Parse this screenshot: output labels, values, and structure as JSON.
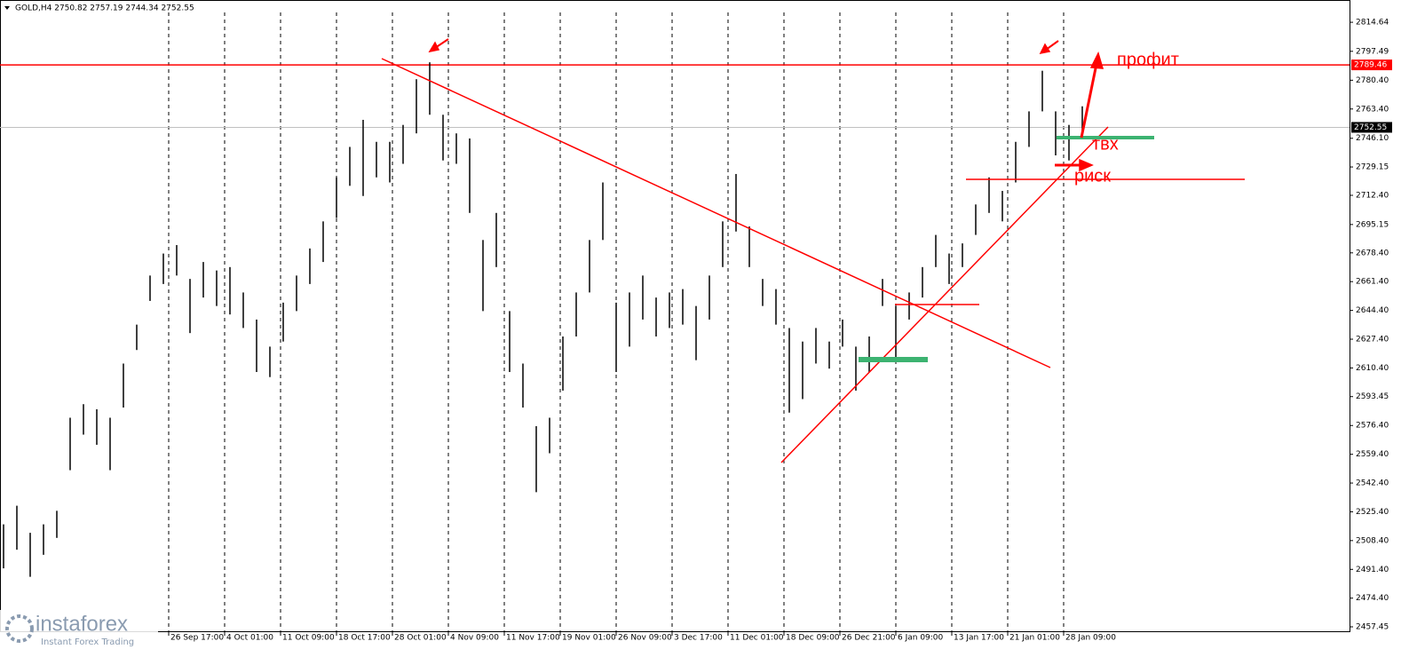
{
  "header": "GOLD,H4 2750.82 2757.19 2744.34 2752.55",
  "logo": {
    "name": "instaforex",
    "tagline": "Instant Forex Trading"
  },
  "chart_data": {
    "type": "ohlc",
    "ylim": [
      2454.3,
      2827.8
    ],
    "yticks": [
      {
        "value": 2814.64,
        "label": "2814.64"
      },
      {
        "value": 2797.49,
        "label": "2797.49"
      },
      {
        "value": 2780.4,
        "label": "2780.40"
      },
      {
        "value": 2763.4,
        "label": "2763.40"
      },
      {
        "value": 2746.1,
        "label": "2746.10"
      },
      {
        "value": 2729.15,
        "label": "2729.15"
      },
      {
        "value": 2712.4,
        "label": "2712.40"
      },
      {
        "value": 2695.15,
        "label": "2695.15"
      },
      {
        "value": 2678.4,
        "label": "2678.40"
      },
      {
        "value": 2661.4,
        "label": "2661.40"
      },
      {
        "value": 2644.4,
        "label": "2644.40"
      },
      {
        "value": 2627.4,
        "label": "2627.40"
      },
      {
        "value": 2610.4,
        "label": "2610.40"
      },
      {
        "value": 2593.45,
        "label": "2593.45"
      },
      {
        "value": 2576.4,
        "label": "2576.40"
      },
      {
        "value": 2559.4,
        "label": "2559.40"
      },
      {
        "value": 2542.4,
        "label": "2542.40"
      },
      {
        "value": 2525.4,
        "label": "2525.40"
      },
      {
        "value": 2508.4,
        "label": "2508.40"
      },
      {
        "value": 2491.4,
        "label": "2491.40"
      },
      {
        "value": 2474.4,
        "label": "2474.40"
      },
      {
        "value": 2457.45,
        "label": "2457.45"
      }
    ],
    "xtick_labels": [
      "26 Sep 17:00",
      "4 Oct 01:00",
      "11 Oct 09:00",
      "18 Oct 17:00",
      "28 Oct 01:00",
      "4 Nov 09:00",
      "11 Nov 17:00",
      "19 Nov 01:00",
      "26 Nov 09:00",
      "3 Dec 17:00",
      "11 Dec 01:00",
      "18 Dec 09:00",
      "26 Dec 21:00",
      "6 Jan 09:00",
      "13 Jan 17:00",
      "21 Jan 01:00",
      "28 Jan 09:00"
    ],
    "color": "#000000",
    "high": [
      2518,
      2529,
      2513,
      2518,
      2526,
      2581,
      2589,
      2586,
      2581,
      2613,
      2636,
      2665,
      2678,
      2683,
      2663,
      2673,
      2668,
      2670,
      2655,
      2639,
      2623,
      2649,
      2665,
      2681,
      2697,
      2723,
      2741,
      2757,
      2744,
      2744,
      2754,
      2781,
      2791,
      2760,
      2749,
      2746,
      2686,
      2702,
      2644,
      2613,
      2576,
      2581,
      2629,
      2655,
      2686,
      2720,
      2649,
      2655,
      2665,
      2652,
      2655,
      2657,
      2647,
      2665,
      2697,
      2725,
      2694,
      2663,
      2657,
      2634,
      2626,
      2634,
      2626,
      2639,
      2623,
      2629,
      2663,
      2647,
      2655,
      2670,
      2689,
      2678,
      2684,
      2707,
      2723,
      2715,
      2744,
      2762,
      2786,
      2762,
      2754,
      2765
    ],
    "low": [
      2492,
      2503,
      2487,
      2500,
      2510,
      2550,
      2571,
      2565,
      2550,
      2587,
      2621,
      2650,
      2660,
      2665,
      2631,
      2652,
      2647,
      2642,
      2634,
      2608,
      2605,
      2626,
      2644,
      2660,
      2673,
      2699,
      2718,
      2712,
      2723,
      2720,
      2731,
      2749,
      2760,
      2733,
      2731,
      2702,
      2644,
      2670,
      2608,
      2587,
      2537,
      2560,
      2597,
      2629,
      2655,
      2686,
      2608,
      2623,
      2639,
      2629,
      2634,
      2636,
      2615,
      2639,
      2670,
      2691,
      2670,
      2647,
      2636,
      2584,
      2592,
      2613,
      2610,
      2623,
      2597,
      2608,
      2647,
      2615,
      2639,
      2652,
      2670,
      2660,
      2670,
      2689,
      2702,
      2697,
      2720,
      2741,
      2762,
      2736,
      2733,
      2747
    ],
    "price_lines": [
      {
        "value": 2789.46,
        "color": "#ff0000"
      },
      {
        "value": 2752.55,
        "color": "#c0c0c0"
      }
    ],
    "annotations": [
      "профит",
      "твх",
      "риск"
    ]
  }
}
